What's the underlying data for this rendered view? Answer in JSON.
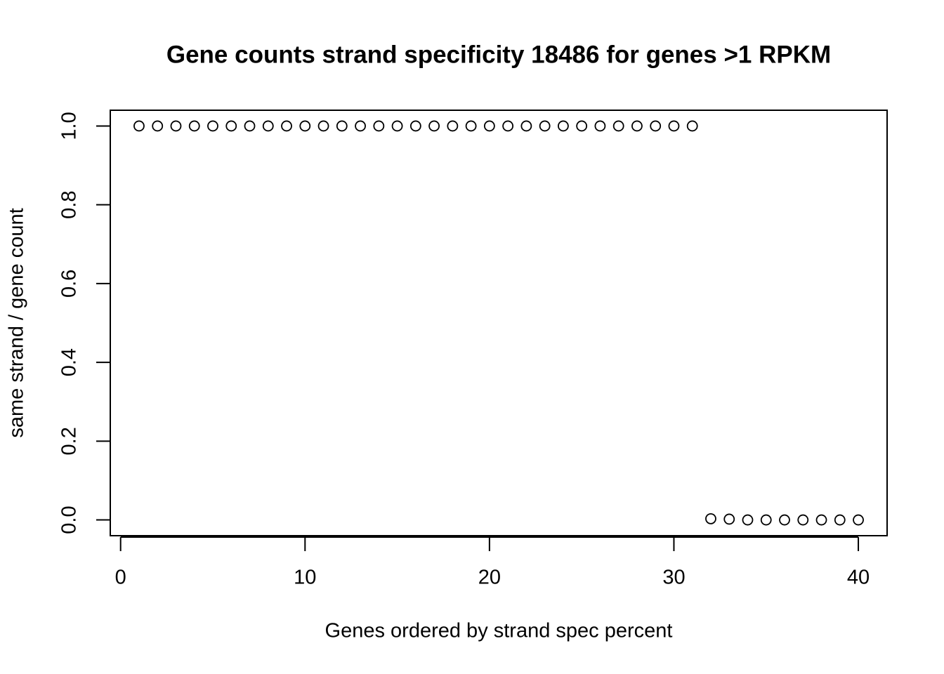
{
  "chart_data": {
    "type": "scatter",
    "title": "Gene counts strand specificity 18486 for genes >1 RPKM",
    "x_label": "Genes ordered by strand spec percent",
    "y_label": "same strand / gene count",
    "x": [
      1,
      2,
      3,
      4,
      5,
      6,
      7,
      8,
      9,
      10,
      11,
      12,
      13,
      14,
      15,
      16,
      17,
      18,
      19,
      20,
      21,
      22,
      23,
      24,
      25,
      26,
      27,
      28,
      29,
      30,
      31,
      32,
      33,
      34,
      35,
      36,
      37,
      38,
      39,
      40
    ],
    "series": [
      {
        "color": "#000000",
        "values": [
          1,
          1,
          1,
          1,
          1,
          1,
          1,
          1,
          1,
          1,
          1,
          1,
          1,
          1,
          1,
          1,
          1,
          1,
          1,
          1,
          1,
          1,
          1,
          1,
          1,
          1,
          1,
          1,
          1,
          1,
          1,
          0.003,
          0.002,
          0,
          0,
          0,
          0,
          0,
          0,
          0
        ]
      }
    ],
    "xlim": [
      -0.56,
      41.56
    ],
    "ylim": [
      -0.04,
      1.04
    ],
    "xticks": [
      0,
      10,
      20,
      30,
      40
    ],
    "yticks": [
      {
        "value": 0,
        "label": "0.0"
      },
      {
        "value": 0.2,
        "label": "0.2"
      },
      {
        "value": 0.4,
        "label": "0.4"
      },
      {
        "value": 0.6,
        "label": "0.6"
      },
      {
        "value": 0.8,
        "label": "0.8"
      },
      {
        "value": 1,
        "label": "1.0"
      }
    ],
    "grid": false
  }
}
